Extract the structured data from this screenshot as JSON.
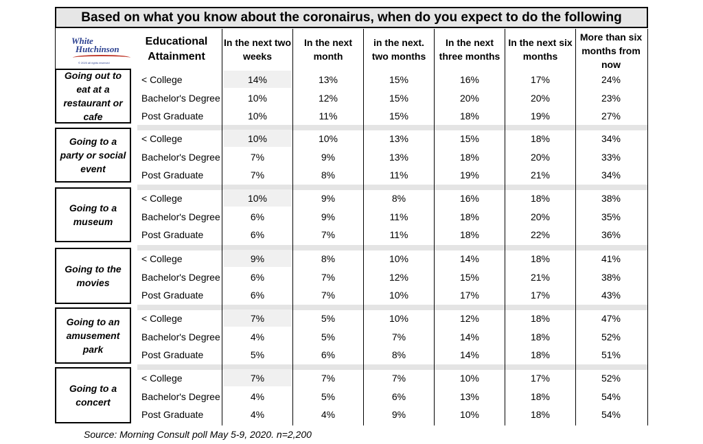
{
  "chart_data": {
    "type": "table",
    "title": "Based on what you know about the coronairus, when do you expect to do the following",
    "row_header": "Educational Attainment",
    "columns": [
      "In the next two weeks",
      "In the next month",
      "in the next. two months",
      "In the next three months",
      "In the next six months",
      "More than six months from now"
    ],
    "groups": [
      {
        "activity": "Going out to eat at a restaurant or cafe",
        "rows": [
          {
            "education": "< College",
            "values": [
              "14%",
              "13%",
              "15%",
              "16%",
              "17%",
              "24%"
            ]
          },
          {
            "education": "Bachelor's Degree",
            "values": [
              "10%",
              "12%",
              "15%",
              "20%",
              "20%",
              "23%"
            ]
          },
          {
            "education": "Post Graduate",
            "values": [
              "10%",
              "11%",
              "15%",
              "18%",
              "19%",
              "27%"
            ]
          }
        ]
      },
      {
        "activity": "Going to a party or social event",
        "rows": [
          {
            "education": "< College",
            "values": [
              "10%",
              "10%",
              "13%",
              "15%",
              "18%",
              "34%"
            ]
          },
          {
            "education": "Bachelor's Degree",
            "values": [
              "7%",
              "9%",
              "13%",
              "18%",
              "20%",
              "33%"
            ]
          },
          {
            "education": "Post Graduate",
            "values": [
              "7%",
              "8%",
              "11%",
              "19%",
              "21%",
              "34%"
            ]
          }
        ]
      },
      {
        "activity": "Going to a museum",
        "rows": [
          {
            "education": "< College",
            "values": [
              "10%",
              "9%",
              "8%",
              "16%",
              "18%",
              "38%"
            ]
          },
          {
            "education": "Bachelor's Degree",
            "values": [
              "6%",
              "9%",
              "11%",
              "18%",
              "20%",
              "35%"
            ]
          },
          {
            "education": "Post Graduate",
            "values": [
              "6%",
              "7%",
              "11%",
              "18%",
              "22%",
              "36%"
            ]
          }
        ]
      },
      {
        "activity": "Going to the movies",
        "rows": [
          {
            "education": "< College",
            "values": [
              "9%",
              "8%",
              "10%",
              "14%",
              "18%",
              "41%"
            ]
          },
          {
            "education": "Bachelor's Degree",
            "values": [
              "6%",
              "7%",
              "12%",
              "15%",
              "21%",
              "38%"
            ]
          },
          {
            "education": "Post Graduate",
            "values": [
              "6%",
              "7%",
              "10%",
              "17%",
              "17%",
              "43%"
            ]
          }
        ]
      },
      {
        "activity": "Going to an amusement park",
        "rows": [
          {
            "education": "< College",
            "values": [
              "7%",
              "5%",
              "10%",
              "12%",
              "18%",
              "47%"
            ]
          },
          {
            "education": "Bachelor's Degree",
            "values": [
              "4%",
              "5%",
              "7%",
              "14%",
              "18%",
              "52%"
            ]
          },
          {
            "education": "Post Graduate",
            "values": [
              "5%",
              "6%",
              "8%",
              "14%",
              "18%",
              "51%"
            ]
          }
        ]
      },
      {
        "activity": "Going to a concert",
        "rows": [
          {
            "education": "< College",
            "values": [
              "7%",
              "7%",
              "7%",
              "10%",
              "17%",
              "52%"
            ]
          },
          {
            "education": "Bachelor's Degree",
            "values": [
              "4%",
              "5%",
              "6%",
              "13%",
              "18%",
              "54%"
            ]
          },
          {
            "education": "Post Graduate",
            "values": [
              "4%",
              "4%",
              "9%",
              "10%",
              "18%",
              "54%"
            ]
          }
        ]
      }
    ],
    "source": "Source: Morning Consult poll May 5-9, 2020. n=2,200"
  },
  "logo": {
    "line1": "White",
    "line2": "Hutchinson",
    "fine_print": "© 2020 all rights reserved"
  },
  "colors": {
    "title_bg": "#e6e6e6",
    "band": "#e4e4e4",
    "logo_blue": "#2a3f8f",
    "logo_red": "#c0392b"
  }
}
